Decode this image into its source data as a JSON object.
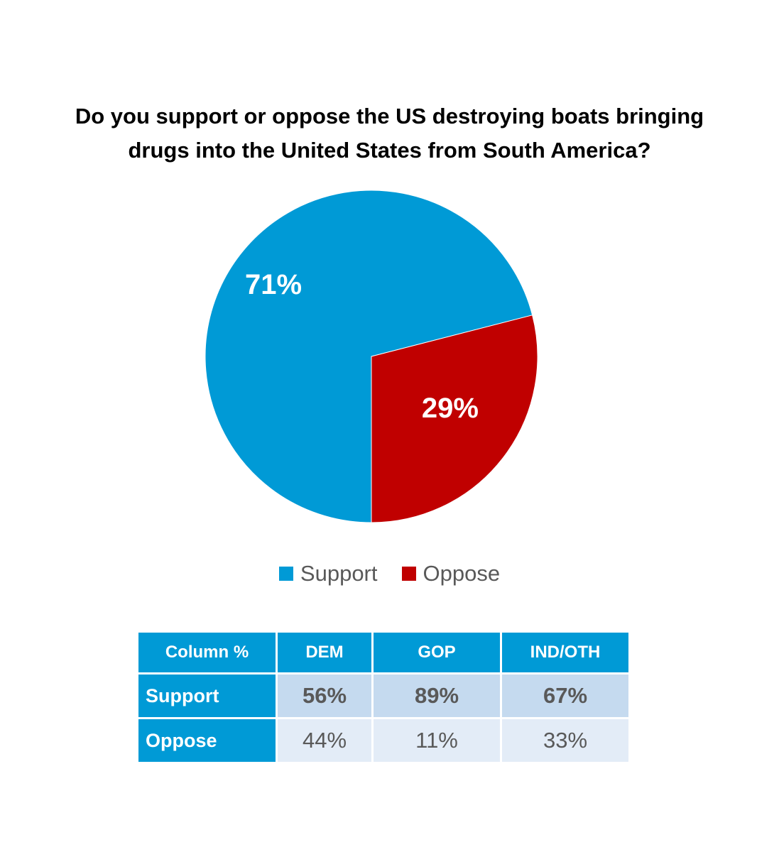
{
  "chart_data": {
    "type": "pie",
    "title_lines": [
      "Do you support or oppose the US destroying boats bringing",
      "drugs into the United States from South America?"
    ],
    "slices": [
      {
        "name": "Support",
        "value": 71,
        "label": "71%",
        "color": "#009ad6"
      },
      {
        "name": "Oppose",
        "value": 29,
        "label": "29%",
        "color": "#c00000"
      }
    ],
    "legend": [
      "Support",
      "Oppose"
    ],
    "legend_placement": "bottom"
  },
  "table": {
    "header_color": "#009ad6",
    "support_cell_color": "#c5daef",
    "oppose_cell_color": "#e3ecf7",
    "columns": [
      "Column %",
      "DEM",
      "GOP",
      "IND/OTH"
    ],
    "rows": [
      {
        "label": "Support",
        "values": [
          "56%",
          "89%",
          "67%"
        ]
      },
      {
        "label": "Oppose",
        "values": [
          "44%",
          "11%",
          "33%"
        ]
      }
    ]
  }
}
